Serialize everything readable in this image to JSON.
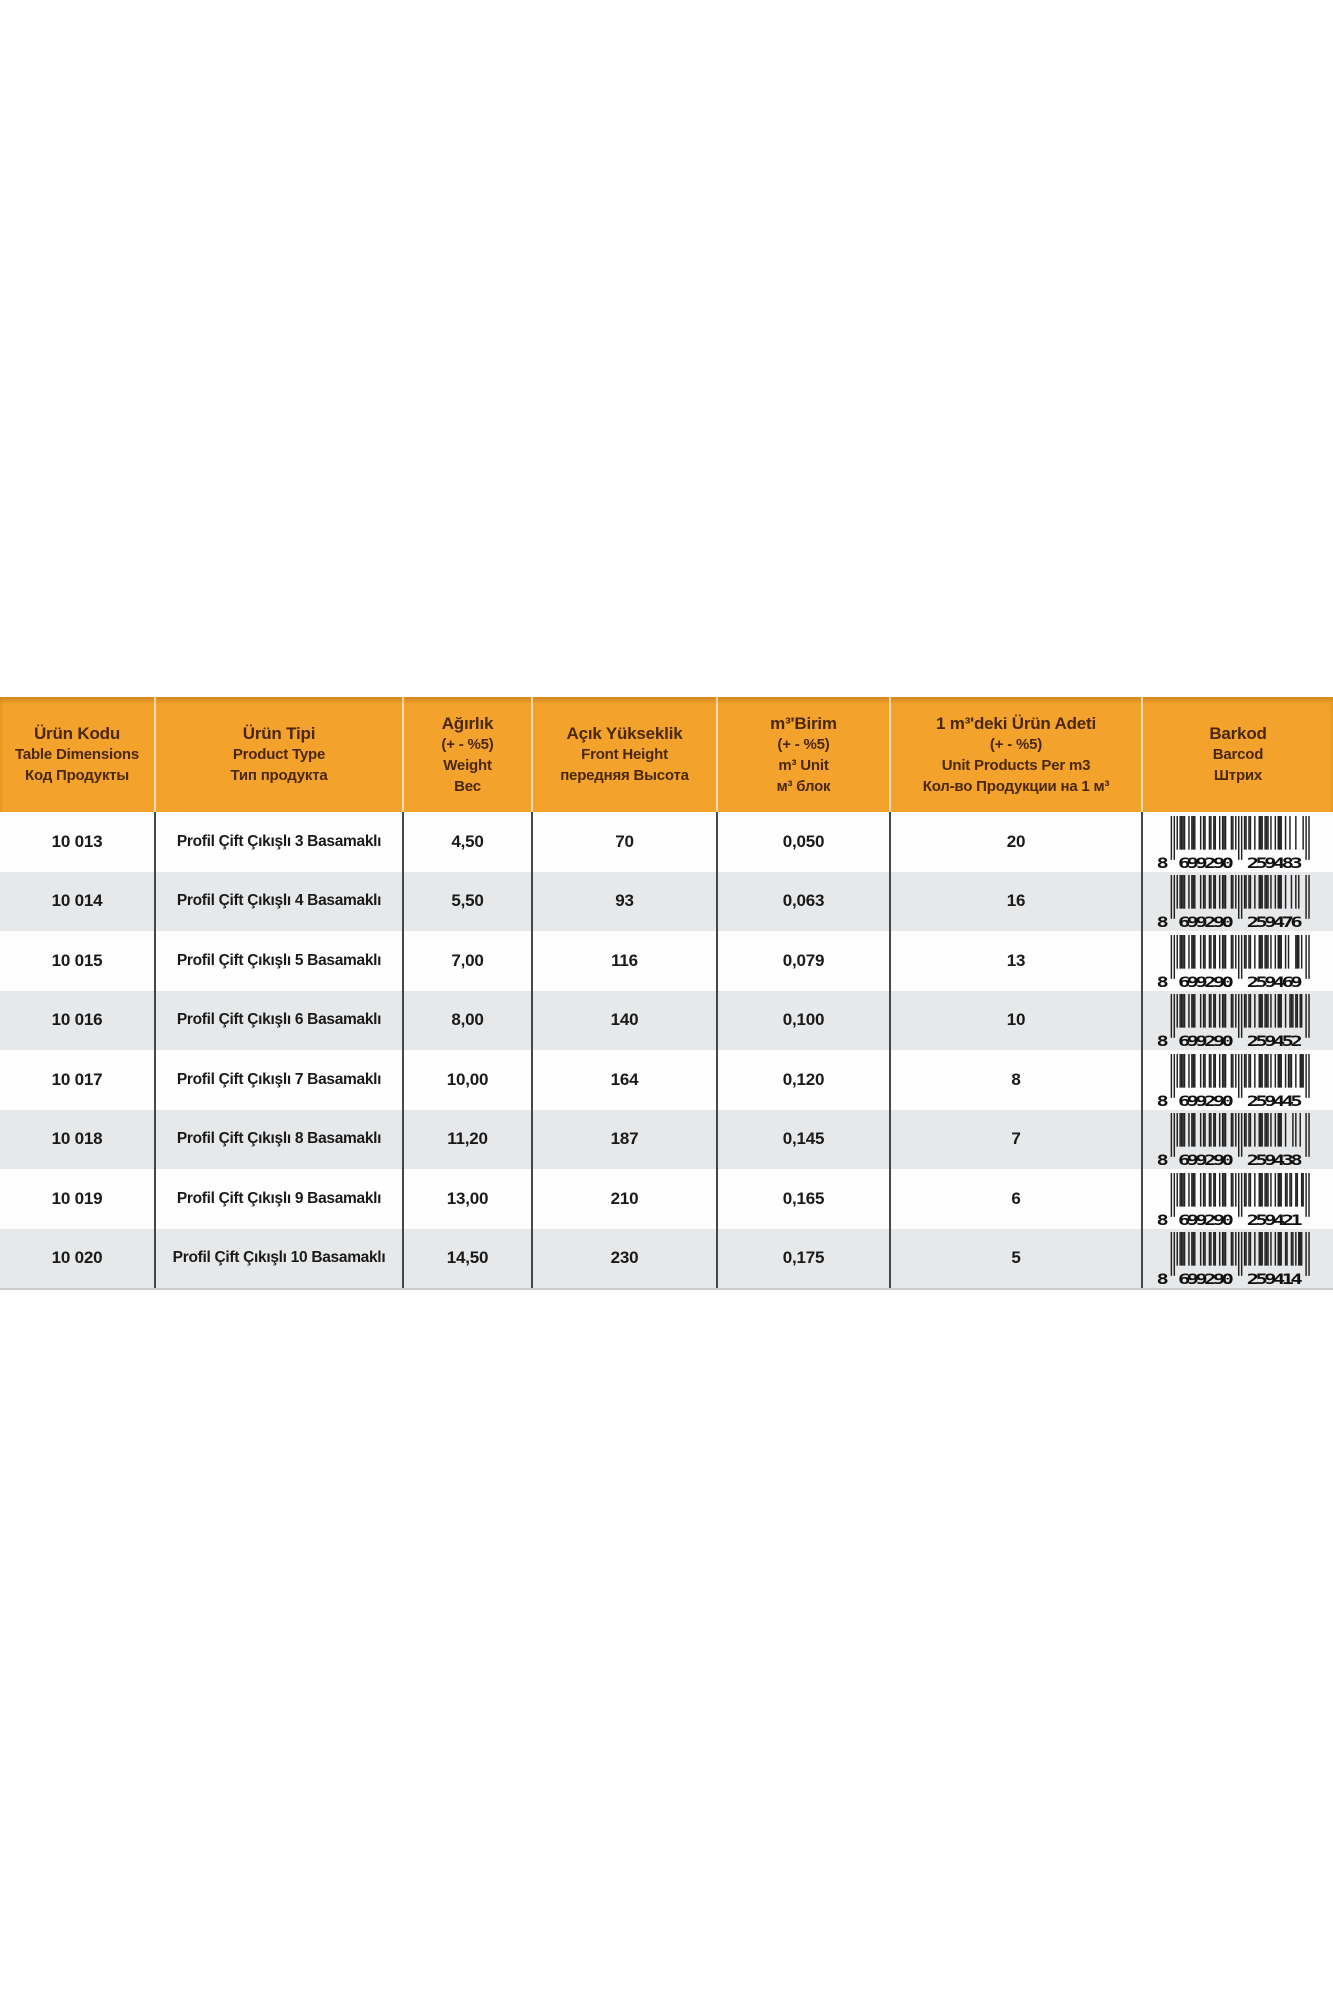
{
  "page": {
    "background": "#ffffff"
  },
  "table": {
    "header_bg": "#F3A32B",
    "header_text_color": "#4A2708",
    "row_bg": "#FEFEFE",
    "row_alt_bg": "#E7E8E9",
    "divider_dark": "#474747",
    "divider_light": "#FFFFFF",
    "bar_color": "#222222",
    "columns": [
      {
        "id": "code",
        "lines": [
          "Ürün Kodu",
          "Table Dimensions",
          "Код Продукты"
        ]
      },
      {
        "id": "type",
        "lines": [
          "Ürün Tipi",
          "Product Type",
          "Тип продукта"
        ]
      },
      {
        "id": "weight",
        "lines": [
          "Ağırlık",
          "(+ - %5)",
          "Weight",
          "Вес"
        ]
      },
      {
        "id": "front_height",
        "lines": [
          "Açık Yükseklik",
          "Front Height",
          "передняя Высота"
        ]
      },
      {
        "id": "m3_unit",
        "lines": [
          "m³'Birim",
          "(+ - %5)",
          "m³ Unit",
          "м³ блок"
        ]
      },
      {
        "id": "units_per_m3",
        "lines": [
          "1 m³'deki Ürün Adeti",
          "(+ - %5)",
          "Unit Products Per m3",
          "Кол-во Продукции на 1 м³"
        ]
      },
      {
        "id": "barcode",
        "lines": [
          "Barkod",
          "Barcod",
          "Штрих"
        ]
      }
    ],
    "rows": [
      {
        "code": "10 013",
        "type": "Profil Çift Çıkışlı 3 Basamaklı",
        "weight": "4,50",
        "front_height": "70",
        "m3_unit": "0,050",
        "units_per_m3": "20",
        "barcode": "8699290259483"
      },
      {
        "code": "10 014",
        "type": "Profil Çift Çıkışlı 4 Basamaklı",
        "weight": "5,50",
        "front_height": "93",
        "m3_unit": "0,063",
        "units_per_m3": "16",
        "barcode": "8699290259476"
      },
      {
        "code": "10 015",
        "type": "Profil Çift Çıkışlı 5 Basamaklı",
        "weight": "7,00",
        "front_height": "116",
        "m3_unit": "0,079",
        "units_per_m3": "13",
        "barcode": "8699290259469"
      },
      {
        "code": "10 016",
        "type": "Profil Çift Çıkışlı 6 Basamaklı",
        "weight": "8,00",
        "front_height": "140",
        "m3_unit": "0,100",
        "units_per_m3": "10",
        "barcode": "8699290259452"
      },
      {
        "code": "10 017",
        "type": "Profil Çift Çıkışlı 7 Basamaklı",
        "weight": "10,00",
        "front_height": "164",
        "m3_unit": "0,120",
        "units_per_m3": "8",
        "barcode": "8699290259445"
      },
      {
        "code": "10 018",
        "type": "Profil Çift Çıkışlı 8 Basamaklı",
        "weight": "11,20",
        "front_height": "187",
        "m3_unit": "0,145",
        "units_per_m3": "7",
        "barcode": "8699290259438"
      },
      {
        "code": "10 019",
        "type": "Profil Çift Çıkışlı 9 Basamaklı",
        "weight": "13,00",
        "front_height": "210",
        "m3_unit": "0,165",
        "units_per_m3": "6",
        "barcode": "8699290259421"
      },
      {
        "code": "10 020",
        "type": "Profil Çift Çıkışlı 10 Basamaklı",
        "weight": "14,50",
        "front_height": "230",
        "m3_unit": "0,175",
        "units_per_m3": "5",
        "barcode": "8699290259414"
      }
    ]
  }
}
